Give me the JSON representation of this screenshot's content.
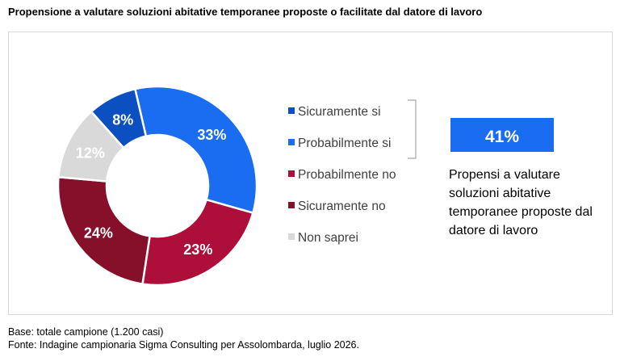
{
  "title": "Propensione a valutare soluzioni abitative temporanee proposte o facilitate dal datore di lavoro",
  "chart_data": {
    "type": "pie",
    "variant": "donut",
    "slices": [
      {
        "label": "Sicuramente si",
        "value": 8,
        "value_label": "8%",
        "color": "#0b4fc1",
        "text_color": "#ffffff"
      },
      {
        "label": "Probabilmente si",
        "value": 33,
        "value_label": "33%",
        "color": "#1a6cf0",
        "text_color": "#ffffff"
      },
      {
        "label": "Probabilmente no",
        "value": 23,
        "value_label": "23%",
        "color": "#ad0f3a",
        "text_color": "#ffffff"
      },
      {
        "label": "Sicuramente no",
        "value": 24,
        "value_label": "24%",
        "color": "#861029",
        "text_color": "#ffffff"
      },
      {
        "label": "Non saprei",
        "value": 12,
        "value_label": "12%",
        "color": "#d9d9d9",
        "text_color": "#ffffff"
      }
    ],
    "legend_position": "right",
    "callout": {
      "value_label": "41%",
      "color": "#1a6cf0",
      "text": "Propensi a valutare soluzioni abitative temporanee proposte dal datore di lavoro"
    }
  },
  "footer": {
    "base": "Base: totale campione (1.200 casi)",
    "source": "Fonte: Indagine campionaria Sigma Consulting per Assolombarda, luglio 2026."
  }
}
